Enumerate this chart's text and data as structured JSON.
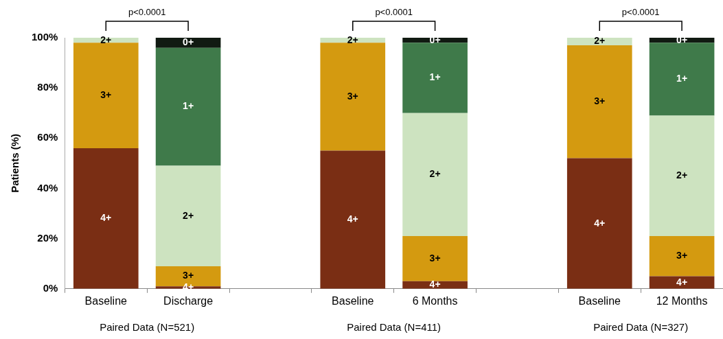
{
  "chart_data": {
    "type": "bar",
    "stacked": true,
    "ylabel": "Patients (%)",
    "categories": [
      "Baseline",
      "Discharge",
      null,
      "Baseline",
      "6 Months",
      null,
      "Baseline",
      "12 Months"
    ],
    "series": [
      {
        "name": "4+",
        "color": "#7a2e14",
        "values": [
          56,
          1,
          null,
          55,
          3,
          null,
          52,
          5
        ]
      },
      {
        "name": "3+",
        "color": "#d49a10",
        "values": [
          42,
          8,
          null,
          43,
          18,
          null,
          45,
          16
        ]
      },
      {
        "name": "2+",
        "color": "#cde3c0",
        "values": [
          2,
          40,
          null,
          2,
          49,
          null,
          3,
          48
        ]
      },
      {
        "name": "1+",
        "color": "#3f7a4a",
        "values": [
          null,
          47,
          null,
          null,
          28,
          null,
          null,
          29
        ]
      },
      {
        "name": "0+",
        "color": "#111a12",
        "values": [
          null,
          4,
          null,
          null,
          2,
          null,
          null,
          2
        ]
      }
    ],
    "ylim": [
      0,
      100
    ],
    "yticks": [
      {
        "value": 0,
        "label": "0%"
      },
      {
        "value": 20,
        "label": "20%"
      },
      {
        "value": 40,
        "label": "40%"
      },
      {
        "value": 60,
        "label": "60%"
      },
      {
        "value": 80,
        "label": "80%"
      },
      {
        "value": 100,
        "label": "100%"
      }
    ],
    "grid": false,
    "legend": false,
    "annotations": [
      "p<0.0001",
      "p<0.0001",
      "p<0.0001",
      "Paired Data (N=521)",
      "Paired Data (N=411)",
      "Paired Data (N=327)"
    ]
  }
}
